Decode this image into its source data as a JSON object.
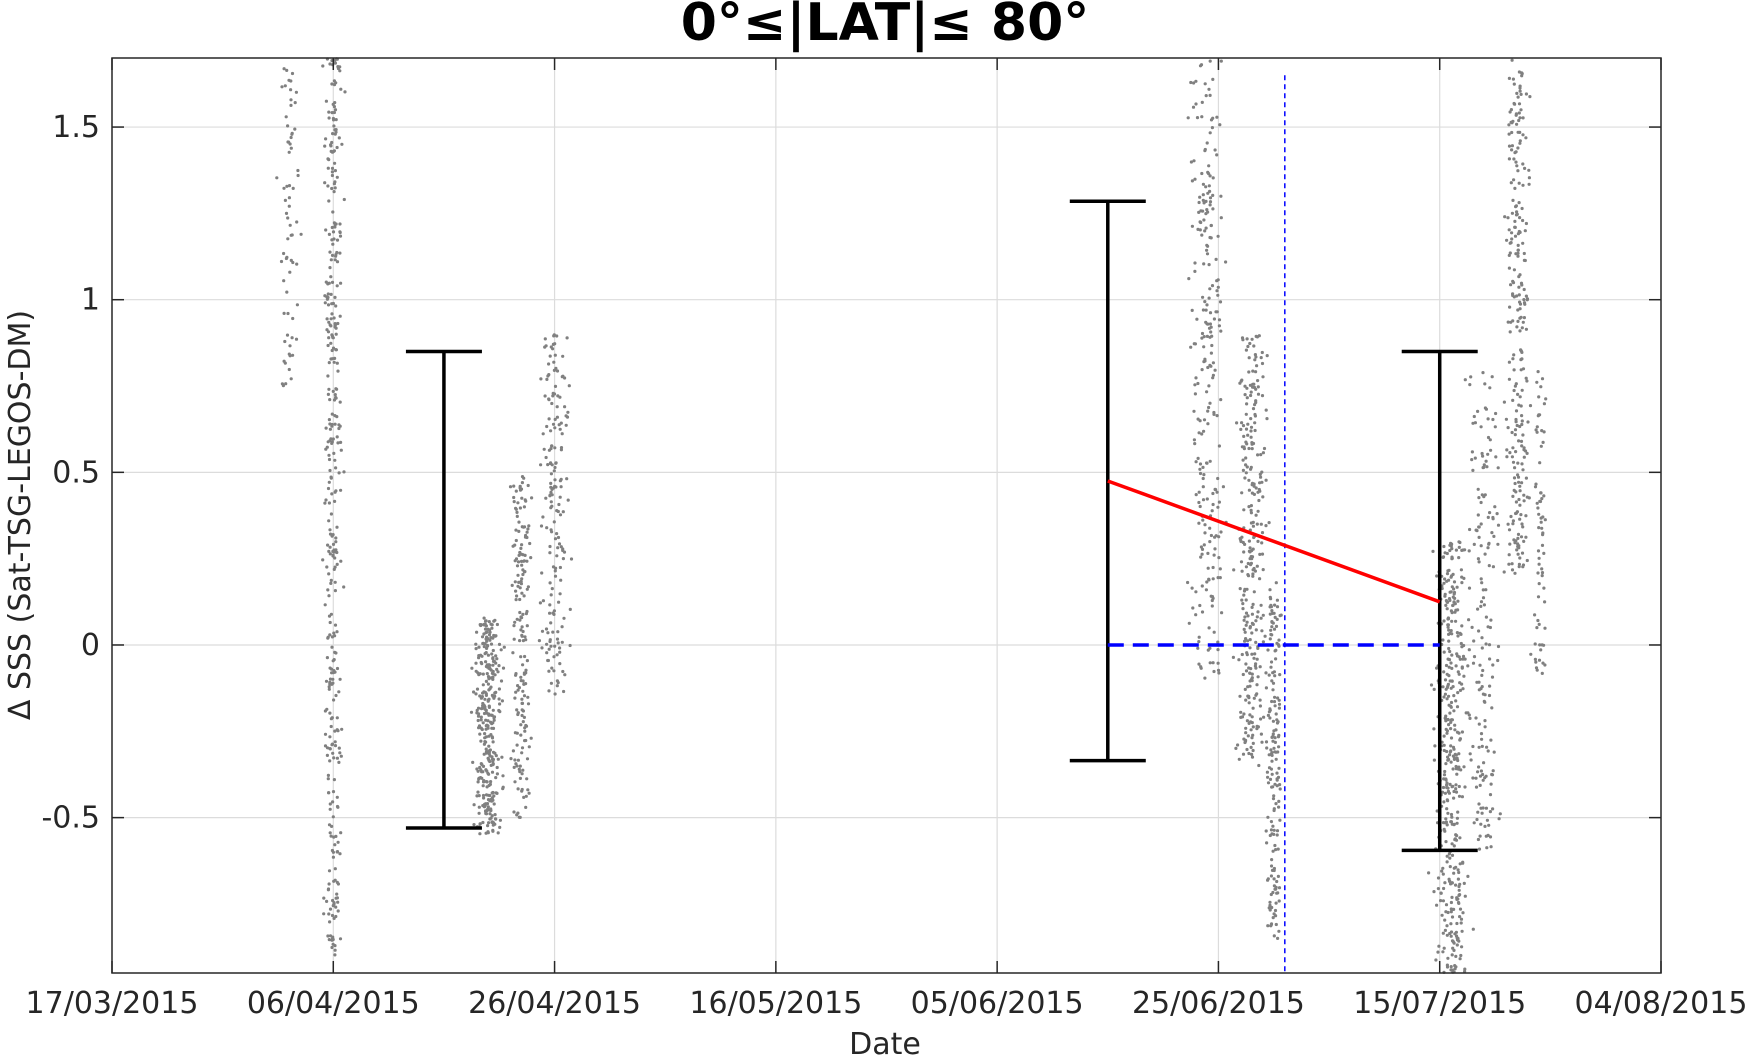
{
  "chart_data": {
    "type": "scatter",
    "title": "0°≤|LAT|≤ 80°",
    "xlabel": "Date",
    "ylabel": "Δ SSS (Sat-TSG-LEGOS-DM)",
    "x_ticks": [
      "17/03/2015",
      "06/04/2015",
      "26/04/2015",
      "16/05/2015",
      "05/06/2015",
      "25/06/2015",
      "15/07/2015",
      "04/08/2015"
    ],
    "xlim": [
      "17/03/2015",
      "04/08/2015"
    ],
    "y_ticks": [
      "-0.5",
      "0",
      "0.5",
      "1",
      "1.5"
    ],
    "ylim": [
      -0.95,
      1.7
    ],
    "grid": true,
    "colors": {
      "points": "#808080",
      "errorbars": "#000000",
      "trend": "#ff0000",
      "zero_line": "#0000ff",
      "vline": "#0000ff"
    },
    "scatter_clusters": [
      {
        "center": "02/04/2015",
        "spread_days": 1.2,
        "y_range": [
          0.75,
          1.7
        ],
        "count": 70
      },
      {
        "center": "06/04/2015",
        "spread_days": 0.8,
        "y_range": [
          -0.9,
          1.7
        ],
        "count": 380
      },
      {
        "center": "20/04/2015",
        "spread_days": 1.2,
        "y_range": [
          -0.55,
          0.08
        ],
        "count": 330
      },
      {
        "center": "23/04/2015",
        "spread_days": 0.8,
        "y_range": [
          -0.5,
          0.5
        ],
        "count": 180
      },
      {
        "center": "26/04/2015",
        "spread_days": 1.2,
        "y_range": [
          -0.15,
          0.9
        ],
        "count": 180
      },
      {
        "center": "24/06/2015",
        "spread_days": 1.5,
        "y_range": [
          -0.1,
          1.7
        ],
        "count": 260
      },
      {
        "center": "28/06/2015",
        "spread_days": 1.2,
        "y_range": [
          -0.35,
          0.9
        ],
        "count": 300
      },
      {
        "center": "30/06/2015",
        "spread_days": 0.6,
        "y_range": [
          -0.85,
          0.2
        ],
        "count": 170
      },
      {
        "center": "16/07/2015",
        "spread_days": 1.4,
        "y_range": [
          -0.95,
          0.3
        ],
        "count": 420
      },
      {
        "center": "19/07/2015",
        "spread_days": 1.2,
        "y_range": [
          -0.6,
          0.8
        ],
        "count": 170
      },
      {
        "center": "22/07/2015",
        "spread_days": 1.0,
        "y_range": [
          0.2,
          1.7
        ],
        "count": 260
      },
      {
        "center": "24/07/2015",
        "spread_days": 0.6,
        "y_range": [
          -0.1,
          0.8
        ],
        "count": 70
      }
    ],
    "errorbars": [
      {
        "x": "16/04/2015",
        "low": -0.53,
        "high": 0.85
      },
      {
        "x": "15/06/2015",
        "low": -0.335,
        "high": 1.285
      },
      {
        "x": "15/07/2015",
        "low": -0.595,
        "high": 0.85
      }
    ],
    "trend_line": {
      "x": [
        "15/06/2015",
        "15/07/2015"
      ],
      "y": [
        0.475,
        0.125
      ]
    },
    "zero_line": {
      "x": [
        "15/06/2015",
        "15/07/2015"
      ],
      "y": [
        0,
        0
      ]
    },
    "vertical_line": {
      "x": "01/07/2015",
      "y_range": [
        -0.95,
        1.65
      ]
    }
  }
}
